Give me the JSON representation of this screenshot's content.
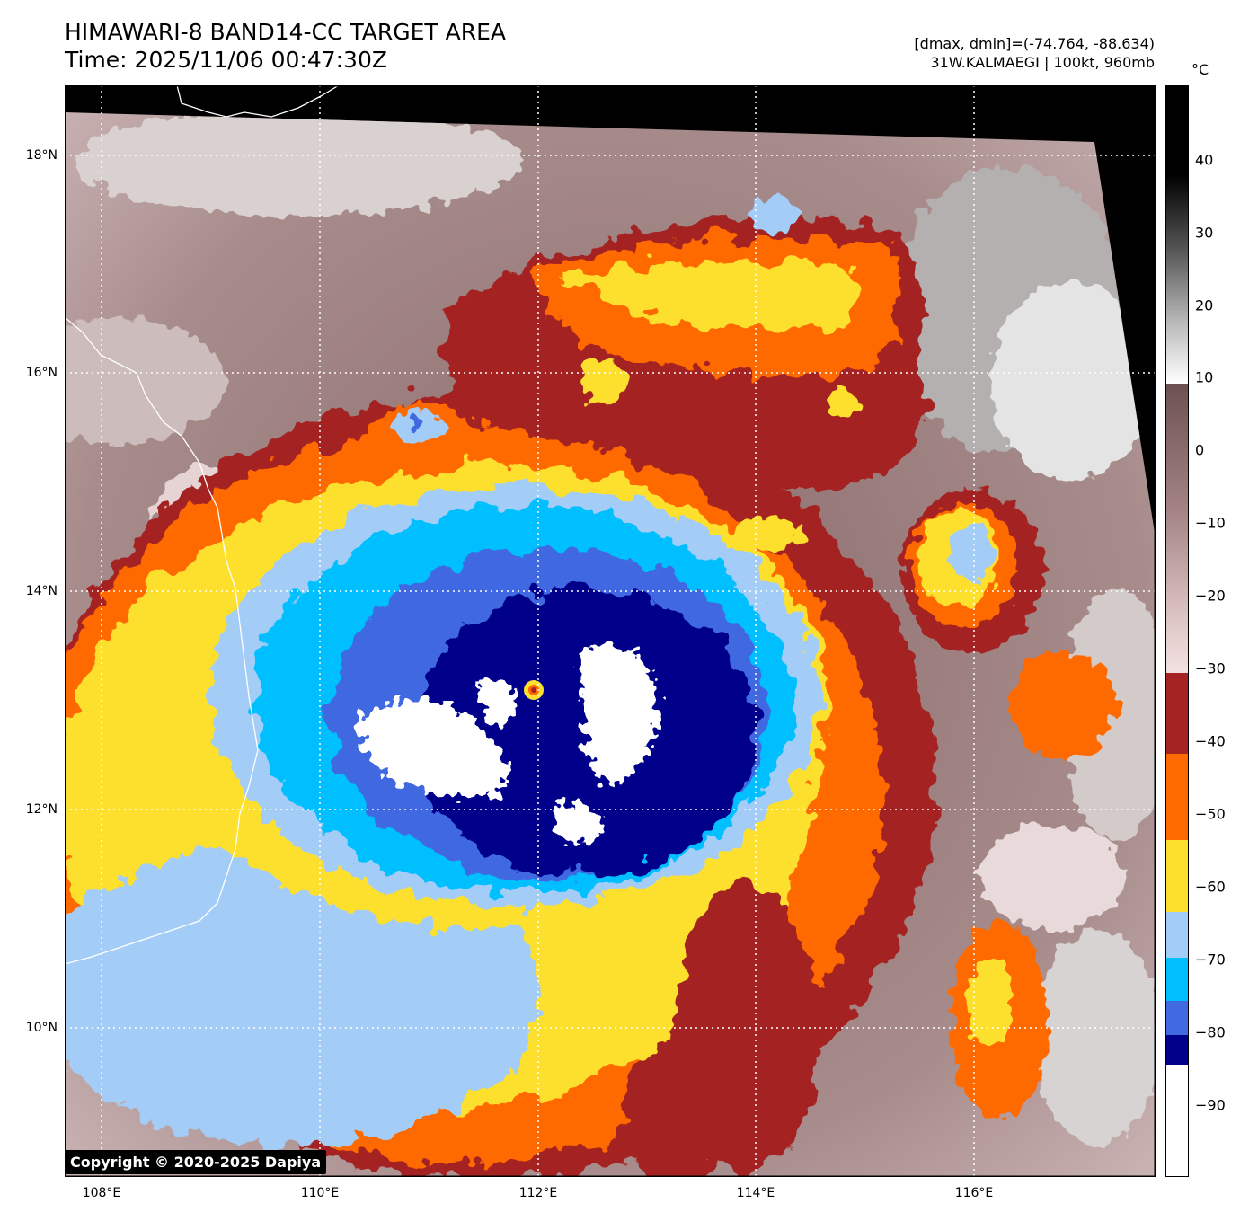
{
  "header": {
    "title_line1": "HIMAWARI-8 BAND14-CC TARGET AREA",
    "title_line2": "Time: 2025/11/06 00:47:30Z",
    "info_line1": "[dmax, dmin]=(-74.764, -88.634)",
    "info_line2": "31W.KALMAEGI | 100kt, 960mb"
  },
  "map": {
    "lat_labels": [
      "18°N",
      "16°N",
      "14°N",
      "12°N",
      "10°N"
    ],
    "lon_labels": [
      "108°E",
      "110°E",
      "112°E",
      "114°E",
      "116°E"
    ],
    "storm_center_lon": 112.0,
    "storm_center_lat": 13.1,
    "copyright": "Copyright © 2020-2025 Dapiya"
  },
  "colorbar": {
    "unit": "°C",
    "ticks": [
      "40",
      "30",
      "20",
      "10",
      "0",
      "−10",
      "−20",
      "−30",
      "−40",
      "−50",
      "−60",
      "−70",
      "−80",
      "−90"
    ],
    "colors": {
      "white": "#ffffff",
      "navy": "#00008b",
      "royal_blue": "#4169e1",
      "deep_sky_blue": "#00bfff",
      "light_sky_blue": "#a3cdf7",
      "gold": "#fde02e",
      "orange": "#ff6a00",
      "brown": "#a52323",
      "pink": "#f3d8d8",
      "taupe": "#6d5151"
    }
  }
}
